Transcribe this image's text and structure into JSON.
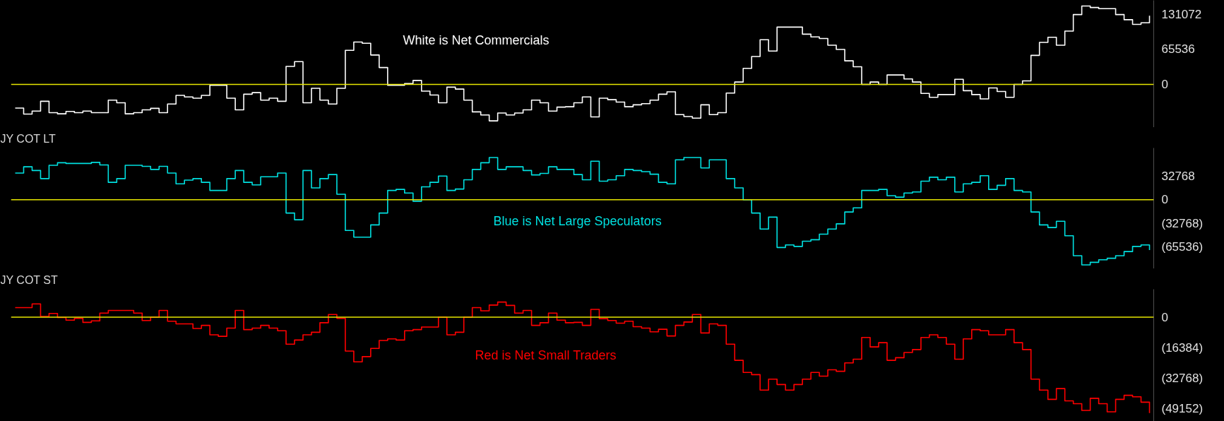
{
  "chart_data": [
    {
      "type": "step",
      "categories": [
        null,
        null,
        null,
        null,
        null,
        null,
        null,
        null,
        null,
        null,
        null,
        null,
        null,
        null,
        null,
        null,
        null,
        null,
        null,
        null,
        null,
        null,
        null,
        null,
        null,
        null,
        null,
        null,
        null,
        null,
        null,
        null,
        null,
        null,
        null,
        null,
        null,
        null,
        null,
        null,
        null,
        null,
        null,
        null,
        null,
        null,
        null,
        null,
        null,
        null,
        null,
        null,
        null,
        null,
        null,
        null,
        null,
        null,
        null,
        null,
        null,
        null,
        null,
        null,
        null,
        null,
        null,
        null,
        null,
        null,
        null,
        null,
        null,
        null,
        null,
        null,
        null,
        null,
        null,
        null,
        null,
        null,
        null,
        null,
        null,
        null,
        null,
        null,
        null,
        null,
        null,
        null,
        null,
        null,
        null,
        null,
        null,
        null,
        null,
        null,
        null,
        null,
        null,
        null,
        null,
        null,
        null,
        null,
        null,
        null,
        null,
        null,
        null,
        null,
        null,
        null,
        null,
        null,
        null,
        null,
        null,
        null,
        null,
        null,
        null,
        null,
        null,
        null,
        null,
        null,
        null,
        null,
        null,
        null,
        null
      ],
      "series": [
        {
          "color": "#ffffff",
          "values": [
            -44000,
            -55000,
            -49500,
            -31300,
            -52400,
            -54600,
            -50200,
            -52400,
            -49500,
            -52400,
            -52400,
            -29100,
            -34200,
            -54600,
            -52400,
            -47300,
            -44400,
            -52400,
            -36400,
            -20400,
            -23300,
            -25500,
            -20400,
            -1500,
            -1500,
            -25500,
            -47300,
            -18200,
            -15300,
            -29100,
            -25500,
            -31300,
            33500,
            42200,
            -34200,
            -7300,
            -29100,
            -36400,
            -7300,
            63300,
            78600,
            76400,
            54600,
            31300,
            -1500,
            -1500,
            1500,
            7300,
            -12400,
            -19700,
            -34200,
            -5100,
            -8700,
            -29100,
            -51000,
            -56800,
            -67700,
            -53100,
            -56800,
            -53100,
            -47300,
            -29100,
            -34200,
            -49500,
            -42200,
            -41500,
            -34200,
            -23300,
            -60400,
            -25500,
            -28400,
            -32800,
            -41500,
            -37900,
            -35700,
            -29100,
            -18200,
            -13800,
            -56100,
            -59700,
            -62600,
            -37900,
            -56100,
            -52400,
            -16000,
            4400,
            29800,
            51700,
            83000,
            61900,
            106300,
            106300,
            106300,
            93200,
            88100,
            85200,
            72800,
            64800,
            43700,
            32800,
            0,
            4400,
            0,
            17500,
            17500,
            10200,
            4400,
            -16700,
            -24000,
            -18900,
            -18900,
            9500,
            -11600,
            -18900,
            -26900,
            -6600,
            -13100,
            -24000,
            0,
            6600,
            53900,
            77900,
            87400,
            72800,
            99000,
            129600,
            145600,
            142700,
            140500,
            140500,
            129600,
            120100,
            111400,
            114300,
            127400
          ]
        }
      ],
      "ylim": [
        -80000,
        156000
      ],
      "yticks": [
        0,
        65536,
        131072
      ],
      "tick_labels": "y",
      "grid": false,
      "ref_lines": [
        {
          "axis": "y",
          "value": 0,
          "color": "#e6e600"
        }
      ],
      "annotations": [
        "White is Net Commercials"
      ]
    },
    {
      "type": "step",
      "title": "JY COT LT",
      "categories": [
        null,
        null,
        null,
        null,
        null,
        null,
        null,
        null,
        null,
        null,
        null,
        null,
        null,
        null,
        null,
        null,
        null,
        null,
        null,
        null,
        null,
        null,
        null,
        null,
        null,
        null,
        null,
        null,
        null,
        null,
        null,
        null,
        null,
        null,
        null,
        null,
        null,
        null,
        null,
        null,
        null,
        null,
        null,
        null,
        null,
        null,
        null,
        null,
        null,
        null,
        null,
        null,
        null,
        null,
        null,
        null,
        null,
        null,
        null,
        null,
        null,
        null,
        null,
        null,
        null,
        null,
        null,
        null,
        null,
        null,
        null,
        null,
        null,
        null,
        null,
        null,
        null,
        null,
        null,
        null,
        null,
        null,
        null,
        null,
        null,
        null,
        null,
        null,
        null,
        null,
        null,
        null,
        null,
        null,
        null,
        null,
        null,
        null,
        null,
        null,
        null,
        null,
        null,
        null,
        null,
        null,
        null,
        null,
        null,
        null,
        null,
        null,
        null,
        null,
        null,
        null,
        null,
        null,
        null,
        null,
        null,
        null,
        null,
        null,
        null,
        null,
        null,
        null,
        null,
        null,
        null,
        null,
        null,
        null,
        null
      ],
      "series": [
        {
          "color": "#00e0e0",
          "values": [
            37100,
            45800,
            40700,
            29400,
            47900,
            51500,
            50500,
            50500,
            50500,
            52000,
            48400,
            24200,
            29400,
            47900,
            47900,
            46400,
            42200,
            46400,
            37100,
            22100,
            27300,
            29400,
            24200,
            12900,
            12900,
            29400,
            40700,
            24200,
            20600,
            31900,
            31900,
            37100,
            -18500,
            -27800,
            40700,
            16500,
            29400,
            35000,
            7700,
            -42700,
            -52000,
            -52000,
            -35000,
            -18500,
            12900,
            14400,
            9300,
            -2100,
            18000,
            24200,
            33000,
            12900,
            14900,
            27800,
            42200,
            51500,
            58700,
            42200,
            45800,
            45800,
            40700,
            34500,
            36600,
            45800,
            42200,
            42200,
            35000,
            27800,
            53600,
            25800,
            27800,
            33500,
            42200,
            40700,
            39100,
            35500,
            24200,
            22100,
            55600,
            58700,
            58700,
            44300,
            55600,
            55600,
            29400,
            16500,
            0,
            -18500,
            -40700,
            -24200,
            -66400,
            -62800,
            -64900,
            -57700,
            -55600,
            -47900,
            -40700,
            -33500,
            -17000,
            -11300,
            12900,
            12900,
            14400,
            5700,
            3600,
            9300,
            10800,
            25800,
            31400,
            27800,
            31400,
            10800,
            22100,
            24200,
            33500,
            14400,
            20100,
            29400,
            12900,
            10800,
            -17000,
            -35000,
            -38600,
            -29900,
            -50000,
            -77800,
            -90600,
            -87000,
            -83400,
            -81400,
            -77800,
            -72100,
            -64900,
            -62800,
            -70000
          ]
        }
      ],
      "ylim": [
        -96000,
        72000
      ],
      "yticks": [
        {
          "value": -65536,
          "label": "(65536)"
        },
        {
          "value": -32768,
          "label": "(32768)"
        },
        0,
        32768
      ],
      "tick_labels": "y",
      "grid": false,
      "ref_lines": [
        {
          "axis": "y",
          "value": 0,
          "color": "#e6e600"
        }
      ],
      "annotations": [
        "Blue is Net Large Speculators"
      ]
    },
    {
      "type": "step",
      "title": "JY COT ST",
      "categories": [
        null,
        null,
        null,
        null,
        null,
        null,
        null,
        null,
        null,
        null,
        null,
        null,
        null,
        null,
        null,
        null,
        null,
        null,
        null,
        null,
        null,
        null,
        null,
        null,
        null,
        null,
        null,
        null,
        null,
        null,
        null,
        null,
        null,
        null,
        null,
        null,
        null,
        null,
        null,
        null,
        null,
        null,
        null,
        null,
        null,
        null,
        null,
        null,
        null,
        null,
        null,
        null,
        null,
        null,
        null,
        null,
        null,
        null,
        null,
        null,
        null,
        null,
        null,
        null,
        null,
        null,
        null,
        null,
        null,
        null,
        null,
        null,
        null,
        null,
        null,
        null,
        null,
        null,
        null,
        null,
        null,
        null,
        null,
        null,
        null,
        null,
        null,
        null,
        null,
        null,
        null,
        null,
        null,
        null,
        null,
        null,
        null,
        null,
        null,
        null,
        null,
        null,
        null,
        null,
        null,
        null,
        null,
        null,
        null,
        null,
        null,
        null,
        null,
        null,
        null,
        null,
        null,
        null,
        null,
        null,
        null,
        null,
        null,
        null,
        null,
        null,
        null,
        null,
        null,
        null,
        null,
        null,
        null,
        null,
        null
      ],
      "series": [
        {
          "color": "#ff0000",
          "values": [
            5100,
            5100,
            7100,
            400,
            2000,
            -200,
            -1600,
            -600,
            -2800,
            -2000,
            2200,
            3600,
            3600,
            3600,
            2200,
            -1800,
            0,
            3600,
            -2200,
            -3600,
            -3600,
            -6100,
            -4400,
            -9500,
            -10300,
            -5900,
            3600,
            -6700,
            -5900,
            -4400,
            -5900,
            -7300,
            -14500,
            -12300,
            -9500,
            -8100,
            -3000,
            1400,
            -600,
            -18200,
            -24000,
            -21200,
            -16800,
            -12500,
            -11700,
            -12300,
            -7300,
            -6700,
            -5300,
            -5300,
            0,
            -9500,
            -8100,
            0,
            5100,
            3400,
            6500,
            8100,
            6300,
            2200,
            3600,
            -4400,
            -3000,
            2200,
            -1600,
            -3000,
            -2800,
            -4400,
            4200,
            -800,
            -1800,
            -3200,
            -2200,
            -5100,
            -5900,
            -7900,
            -6500,
            -10100,
            -4400,
            -2600,
            1400,
            -8500,
            -3600,
            -4400,
            -14500,
            -23200,
            -29700,
            -30900,
            -39200,
            -33300,
            -36200,
            -39200,
            -36200,
            -33300,
            -29700,
            -31700,
            -28300,
            -29100,
            -24600,
            -22600,
            -10900,
            -16000,
            -13700,
            -23200,
            -21800,
            -19000,
            -17400,
            -10900,
            -9500,
            -10900,
            -14500,
            -22600,
            -11700,
            -6700,
            -7300,
            -9500,
            -9500,
            -6700,
            -13700,
            -17400,
            -33300,
            -39200,
            -44200,
            -38400,
            -45000,
            -46500,
            -50100,
            -43600,
            -46500,
            -50900,
            -44200,
            -42000,
            -42800,
            -45700,
            -51500
          ]
        }
      ],
      "ylim": [
        -56000,
        15000
      ],
      "yticks": [
        {
          "value": -49152,
          "label": "(49152)"
        },
        {
          "value": -32768,
          "label": "(32768)"
        },
        {
          "value": -16384,
          "label": "(16384)"
        },
        0
      ],
      "tick_labels": "y",
      "grid": false,
      "ref_lines": [
        {
          "axis": "y",
          "value": 0,
          "color": "#e6e600"
        }
      ],
      "annotations": [
        "Red is Net Small Traders"
      ]
    }
  ]
}
